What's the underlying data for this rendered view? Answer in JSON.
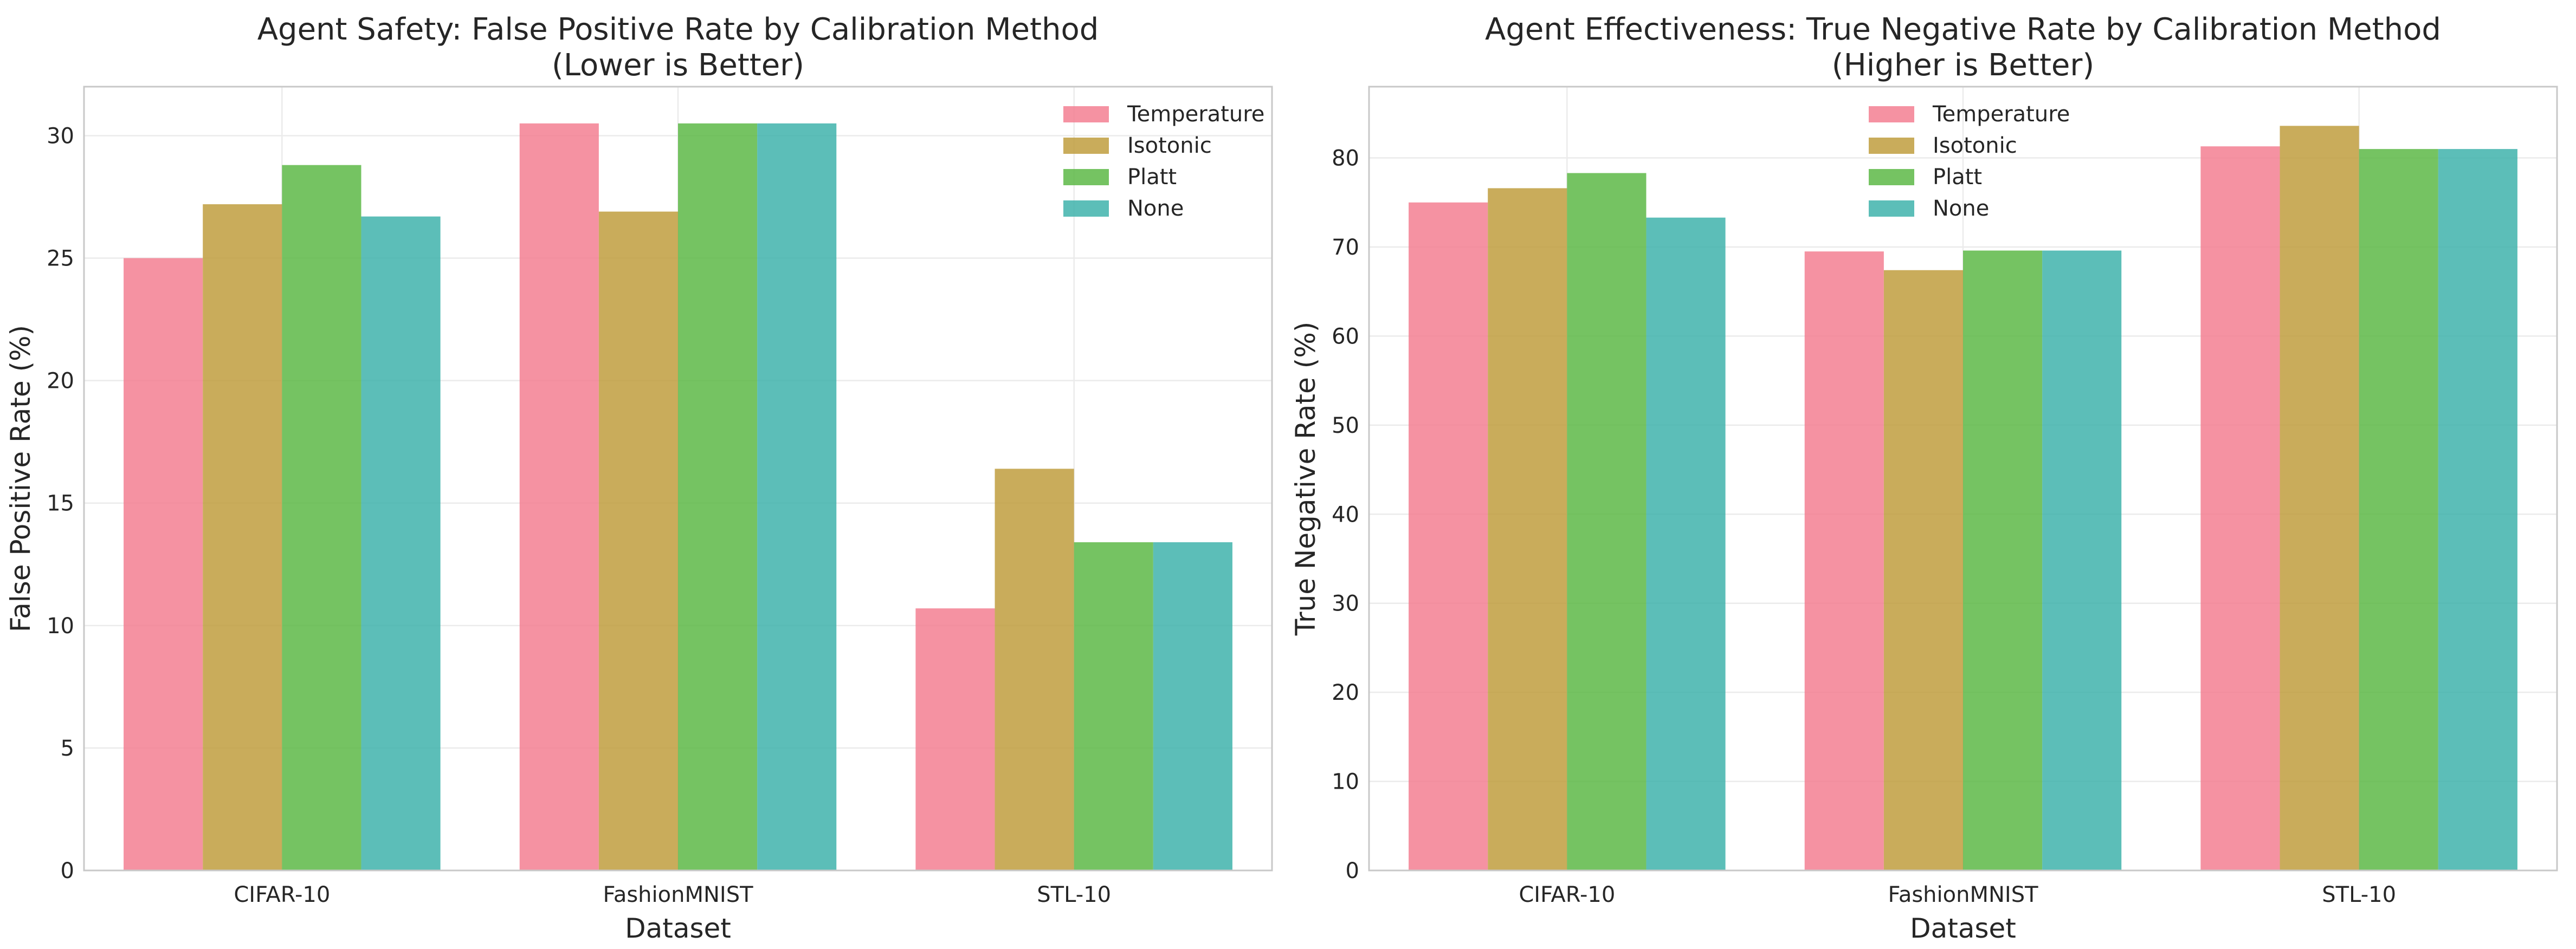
{
  "chart_data": [
    {
      "type": "bar",
      "title": "Agent Safety: False Positive Rate by Calibration Method\n(Lower is Better)",
      "xlabel": "Dataset",
      "ylabel": "False Positive Rate (%)",
      "categories": [
        "CIFAR-10",
        "FashionMNIST",
        "STL-10"
      ],
      "ylim": [
        0,
        32
      ],
      "yticks": [
        0,
        5,
        10,
        15,
        20,
        25,
        30
      ],
      "grid": true,
      "legend_position": "top-right",
      "series": [
        {
          "name": "Temperature",
          "color": "#f37f92",
          "values": [
            25.0,
            30.5,
            10.7
          ]
        },
        {
          "name": "Isotonic",
          "color": "#c09e3e",
          "values": [
            27.2,
            26.9,
            16.4
          ]
        },
        {
          "name": "Platt",
          "color": "#5db946",
          "values": [
            28.8,
            30.5,
            13.4
          ]
        },
        {
          "name": "None",
          "color": "#3fb3ab",
          "values": [
            26.7,
            30.5,
            13.4
          ]
        }
      ]
    },
    {
      "type": "bar",
      "title": "Agent Effectiveness: True Negative Rate by Calibration Method\n(Higher is Better)",
      "xlabel": "Dataset",
      "ylabel": "True Negative Rate (%)",
      "categories": [
        "CIFAR-10",
        "FashionMNIST",
        "STL-10"
      ],
      "ylim": [
        0,
        88
      ],
      "yticks": [
        0,
        10,
        20,
        30,
        40,
        50,
        60,
        70,
        80
      ],
      "grid": true,
      "legend_position": "top-center",
      "series": [
        {
          "name": "Temperature",
          "color": "#f37f92",
          "values": [
            75.0,
            69.5,
            81.3
          ]
        },
        {
          "name": "Isotonic",
          "color": "#c09e3e",
          "values": [
            76.6,
            67.4,
            83.6
          ]
        },
        {
          "name": "Platt",
          "color": "#5db946",
          "values": [
            78.3,
            69.6,
            81.0
          ]
        },
        {
          "name": "None",
          "color": "#3fb3ab",
          "values": [
            73.3,
            69.6,
            81.0
          ]
        }
      ]
    }
  ]
}
